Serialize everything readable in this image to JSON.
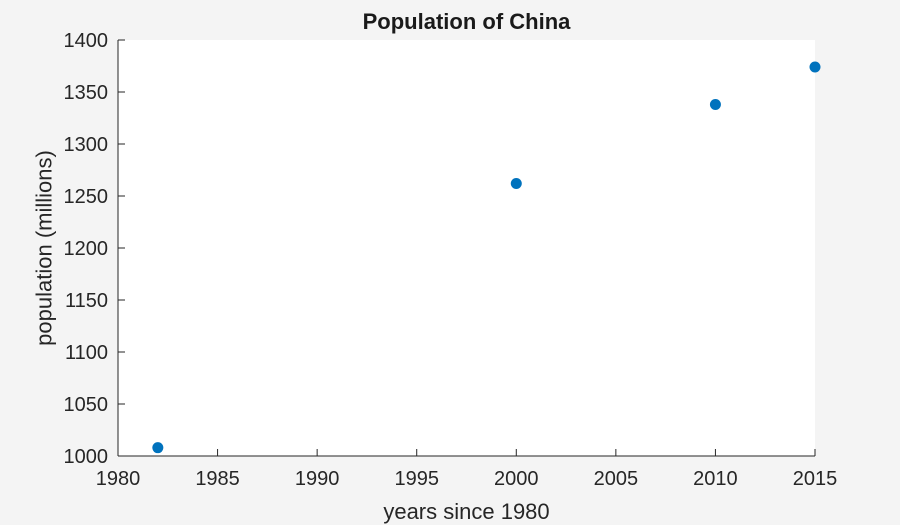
{
  "chart_data": {
    "type": "scatter",
    "title": "Population of China",
    "xlabel": "years since 1980",
    "ylabel": "population (millions)",
    "xlim": [
      1980,
      2015
    ],
    "ylim": [
      1000,
      1400
    ],
    "xticks": [
      1980,
      1985,
      1990,
      1995,
      2000,
      2005,
      2010,
      2015
    ],
    "yticks": [
      1000,
      1050,
      1100,
      1150,
      1200,
      1250,
      1300,
      1350,
      1400
    ],
    "grid": false,
    "series": [
      {
        "x": [
          1982,
          2000,
          2010,
          2015
        ],
        "y": [
          1008,
          1262,
          1338,
          1374
        ],
        "color": "#0072bd"
      }
    ]
  },
  "colors": {
    "figure_background": "#f4f4f4",
    "axes_background": "#ffffff",
    "axis_line": "#262626",
    "marker": "#0072bd"
  }
}
